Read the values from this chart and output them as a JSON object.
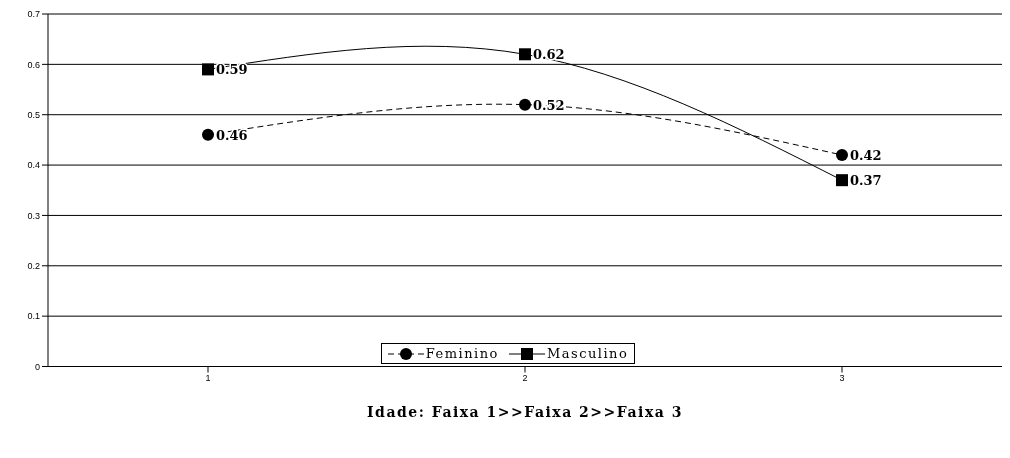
{
  "chart_data": {
    "type": "line",
    "xlabel": "Idade: Faixa 1>>Faixa 2>>Faixa 3",
    "categories": [
      "1",
      "2",
      "3"
    ],
    "series": [
      {
        "name": "Feminino",
        "color": "#000000",
        "values": [
          0.46,
          0.52,
          0.42
        ],
        "marker": "circle",
        "line_style": "dashed"
      },
      {
        "name": "Masculino",
        "color": "#000000",
        "values": [
          0.59,
          0.62,
          0.37
        ],
        "marker": "square",
        "line_style": "solid"
      }
    ],
    "ylim": [
      0,
      0.7
    ],
    "yticks": [
      0,
      0.1,
      0.2,
      0.3,
      0.4,
      0.5,
      0.6,
      0.7
    ],
    "grid": "y",
    "legend": "bottom",
    "data_labels": true
  }
}
